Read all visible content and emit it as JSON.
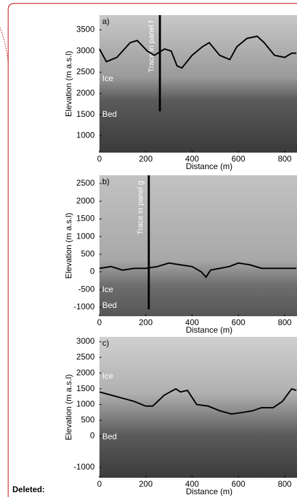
{
  "margin_label": "Deleted:",
  "chart_data": [
    {
      "type": "line",
      "title": "a)",
      "xlabel": "Distance (m)",
      "ylabel": "Elevation (m a.s.l)",
      "xlim": [
        0,
        853
      ],
      "xticks": [
        0,
        200,
        400,
        600,
        800
      ],
      "ylim": [
        600,
        3850
      ],
      "yticks": [
        1000,
        1500,
        2000,
        2500,
        3000,
        3500
      ],
      "annotations": [
        "Ice",
        "Bed"
      ],
      "trace": {
        "x": 261,
        "label": "Trace in panel f"
      },
      "series": [
        {
          "color": "#000000",
          "x": [
            0,
            30,
            75,
            133,
            163,
            207,
            237,
            281,
            310,
            335,
            356,
            400,
            444,
            474,
            519,
            563,
            593,
            637,
            681,
            711,
            756,
            800,
            830,
            850
          ],
          "values": [
            3050,
            2750,
            2850,
            3200,
            3250,
            3000,
            2900,
            3050,
            3000,
            2650,
            2600,
            2900,
            3100,
            3200,
            2900,
            2800,
            3100,
            3300,
            3350,
            3200,
            2900,
            2850,
            2950,
            2950
          ]
        }
      ]
    },
    {
      "type": "line",
      "title": "b)",
      "xlabel": "Distance (m)",
      "ylabel": "Elevation (m a.s.l)",
      "xlim": [
        0,
        853
      ],
      "xticks": [
        0,
        200,
        400,
        600,
        800
      ],
      "ylim": [
        -1255,
        2735
      ],
      "yticks": [
        -1000,
        -500,
        0,
        500,
        1000,
        1500,
        2000,
        2500
      ],
      "annotations": [
        "Ice",
        "Bed"
      ],
      "trace": {
        "x": 213,
        "label": "Trace in panel g"
      },
      "series": [
        {
          "color": "#000000",
          "x": [
            0,
            50,
            100,
            150,
            200,
            250,
            300,
            350,
            400,
            440,
            460,
            480,
            520,
            560,
            600,
            650,
            700,
            750,
            800,
            850
          ],
          "values": [
            100,
            150,
            50,
            100,
            100,
            150,
            250,
            200,
            150,
            0,
            -150,
            50,
            100,
            150,
            250,
            200,
            100,
            100,
            100,
            100
          ]
        }
      ]
    },
    {
      "type": "line",
      "title": "c)",
      "xlabel": "Distance (m)",
      "ylabel": "Elevation (m a.s.l)",
      "xlim": [
        0,
        853
      ],
      "xticks": [
        0,
        200,
        400,
        600,
        800
      ],
      "ylim": [
        -1328,
        3153
      ],
      "yticks": [
        -1000,
        0,
        500,
        1000,
        1500,
        2000,
        2500,
        3000
      ],
      "annotations": [
        "Ice",
        "Bed"
      ],
      "series": [
        {
          "color": "#000000",
          "x": [
            0,
            50,
            100,
            150,
            200,
            230,
            280,
            330,
            350,
            380,
            420,
            470,
            520,
            570,
            620,
            660,
            700,
            750,
            790,
            830,
            850
          ],
          "values": [
            1400,
            1300,
            1200,
            1100,
            950,
            950,
            1300,
            1500,
            1400,
            1450,
            1000,
            950,
            800,
            700,
            750,
            800,
            900,
            900,
            1100,
            1500,
            1450
          ]
        }
      ]
    }
  ]
}
